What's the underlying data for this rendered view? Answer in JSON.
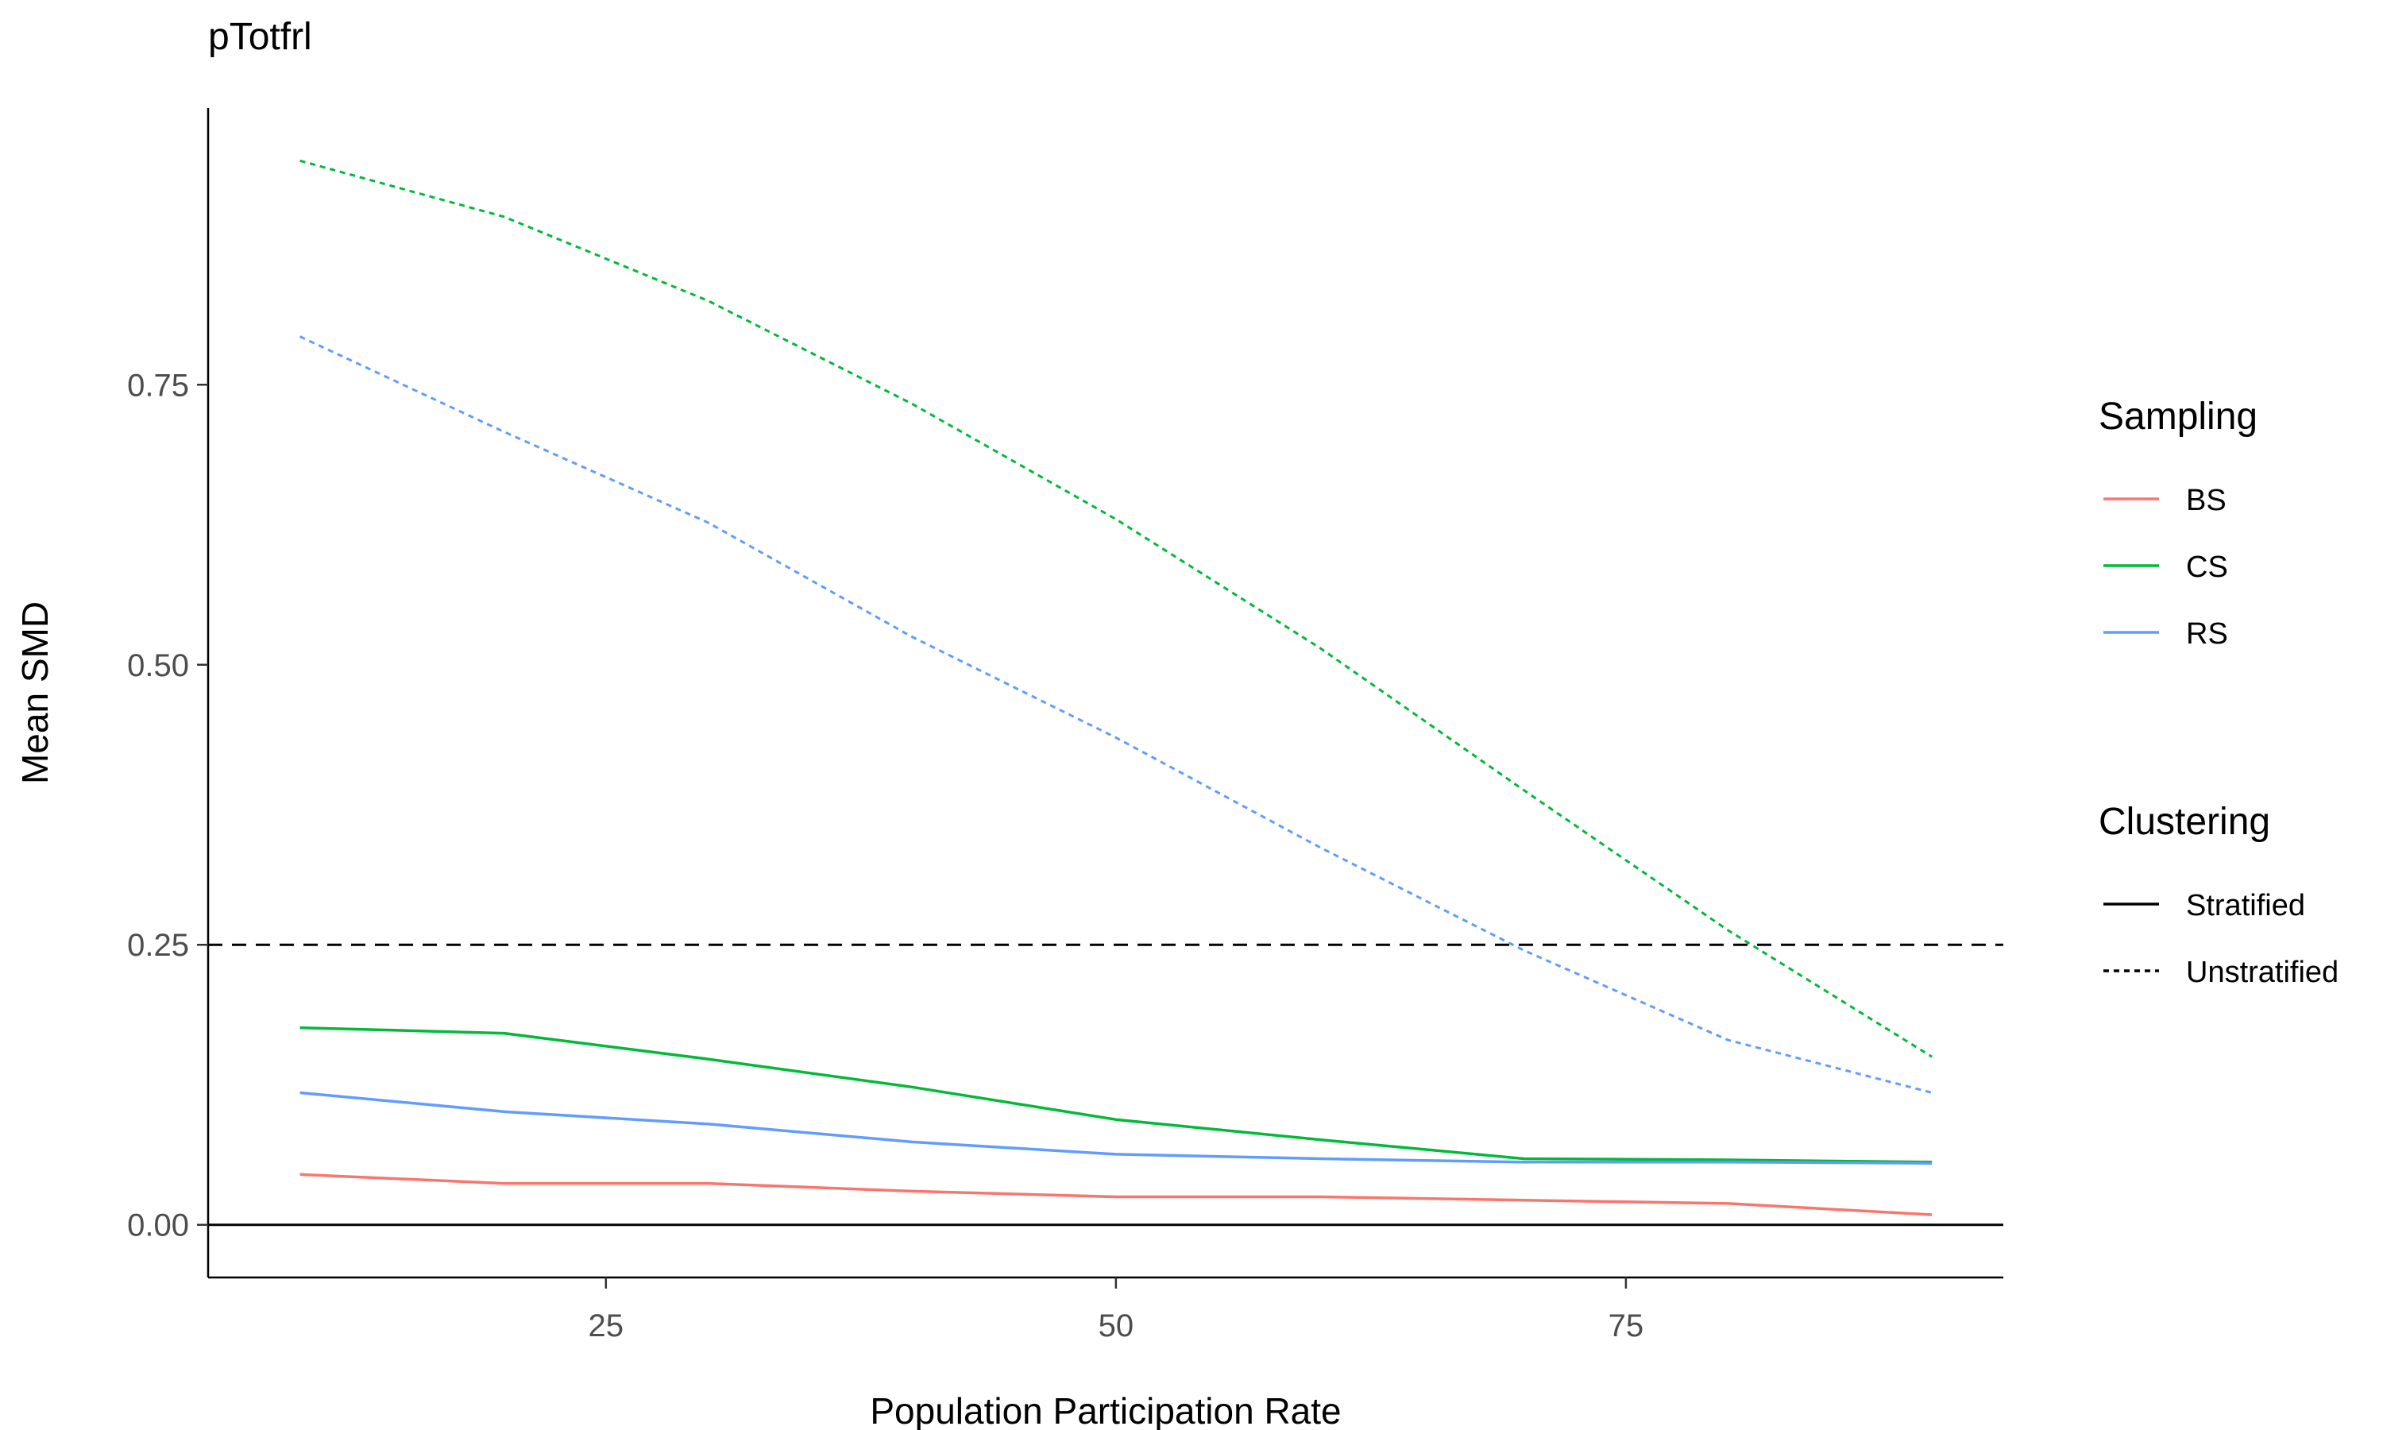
{
  "chart_data": {
    "type": "line",
    "title": "pTotfrl",
    "xlabel": "Population Participation Rate",
    "ylabel": "Mean SMD",
    "x": [
      10,
      20,
      30,
      40,
      50,
      60,
      70,
      80,
      90
    ],
    "xlim": [
      5.5,
      93.5
    ],
    "ylim": [
      -0.047,
      0.997
    ],
    "xticks": [
      25,
      50,
      75
    ],
    "xtick_labels": [
      "25",
      "50",
      "75"
    ],
    "yticks": [
      0,
      0.25,
      0.5,
      0.75
    ],
    "ytick_labels": [
      "0.00",
      "0.25",
      "0.50",
      "0.75"
    ],
    "grid": false,
    "legend_position": "right",
    "reference_lines": [
      {
        "axis": "y",
        "value": 0,
        "style": "solid",
        "color": "#000000"
      },
      {
        "axis": "y",
        "value": 0.25,
        "style": "dashed",
        "color": "#000000"
      }
    ],
    "legends": [
      {
        "title": "Sampling",
        "entries": [
          {
            "label": "BS",
            "color": "#F8766D",
            "style": "solid"
          },
          {
            "label": "CS",
            "color": "#00BA38",
            "style": "solid"
          },
          {
            "label": "RS",
            "color": "#619CFF",
            "style": "solid"
          }
        ]
      },
      {
        "title": "Clustering",
        "entries": [
          {
            "label": "Stratified",
            "color": "#000000",
            "style": "solid"
          },
          {
            "label": "Unstratified",
            "color": "#000000",
            "style": "dotted"
          }
        ]
      }
    ],
    "series": [
      {
        "sampling": "BS",
        "clustering": "Stratified",
        "color": "#F8766D",
        "style": "solid",
        "values": [
          0.045,
          0.037,
          0.037,
          0.03,
          0.025,
          0.025,
          0.022,
          0.019,
          0.009
        ]
      },
      {
        "sampling": "CS",
        "clustering": "Stratified",
        "color": "#00BA38",
        "style": "solid",
        "values": [
          0.176,
          0.171,
          0.148,
          0.123,
          0.094,
          0.076,
          0.059,
          0.058,
          0.056
        ]
      },
      {
        "sampling": "RS",
        "clustering": "Stratified",
        "color": "#619CFF",
        "style": "solid",
        "values": [
          0.118,
          0.101,
          0.09,
          0.074,
          0.063,
          0.059,
          0.056,
          0.056,
          0.055
        ]
      },
      {
        "sampling": "CS",
        "clustering": "Unstratified",
        "color": "#00BA38",
        "style": "dotted",
        "values": [
          0.95,
          0.9,
          0.825,
          0.733,
          0.63,
          0.515,
          0.388,
          0.263,
          0.15
        ]
      },
      {
        "sampling": "RS",
        "clustering": "Unstratified",
        "color": "#619CFF",
        "style": "dotted",
        "values": [
          0.793,
          0.708,
          0.627,
          0.525,
          0.435,
          0.337,
          0.245,
          0.165,
          0.118
        ]
      }
    ]
  }
}
